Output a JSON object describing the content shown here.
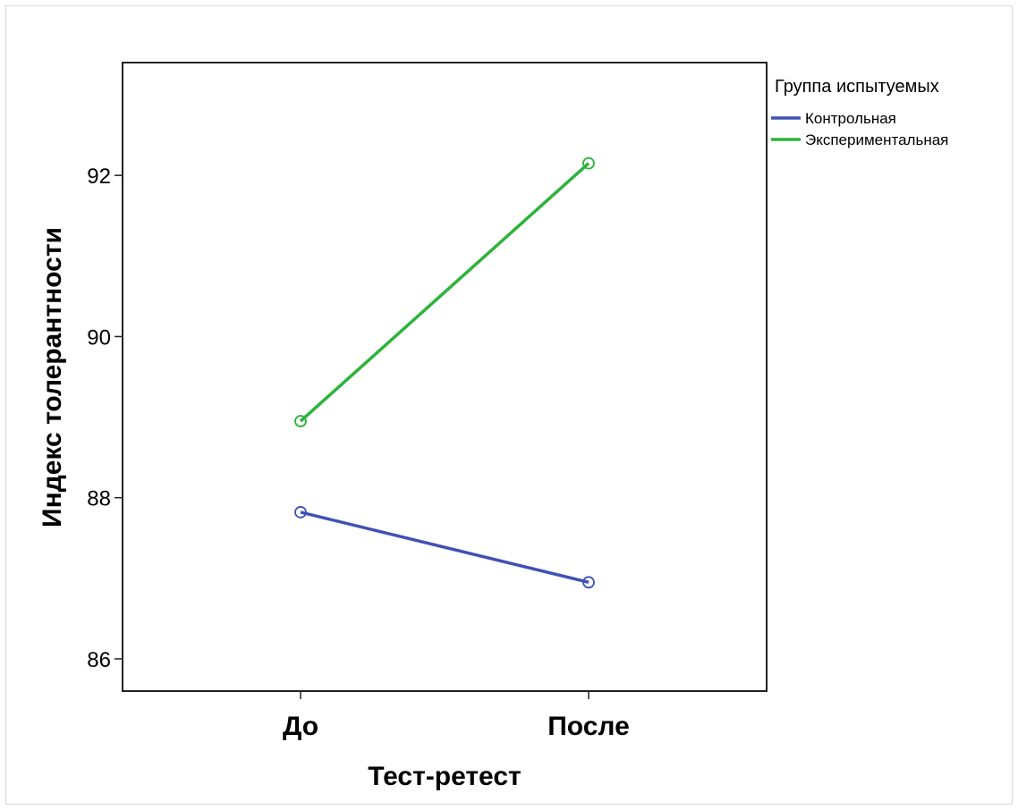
{
  "chart_data": {
    "type": "line",
    "title": "",
    "xlabel": "Тест-ретест",
    "ylabel": "Индекс толерантности",
    "categories": [
      "До",
      "После"
    ],
    "ylim": [
      85.6,
      93.4
    ],
    "yticks": [
      86,
      88,
      90,
      92
    ],
    "legend": {
      "title": "Группа испытуемых",
      "placement": "right"
    },
    "grid": false,
    "series": [
      {
        "name": "Контрольная",
        "color": "#3f51b5",
        "values": [
          87.82,
          86.95
        ]
      },
      {
        "name": "Экспериментальная",
        "color": "#2db33b",
        "values": [
          88.95,
          92.15
        ]
      }
    ]
  }
}
